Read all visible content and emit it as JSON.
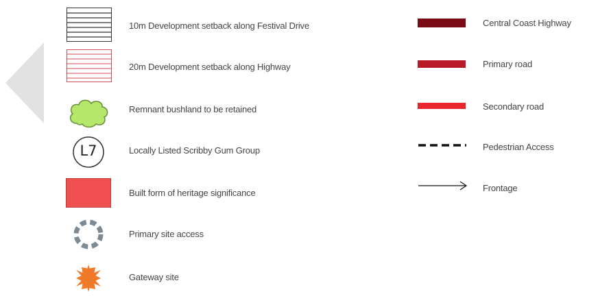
{
  "legend": {
    "left": [
      {
        "label": "10m Development setback along Festival Drive",
        "icon": "black-hatched-rectangle-icon"
      },
      {
        "label": "20m Development setback along Highway",
        "icon": "red-hatched-rectangle-icon"
      },
      {
        "label": "Remnant bushland to be retained",
        "icon": "green-cloud-icon",
        "color": "#b5e86a"
      },
      {
        "label": "Locally Listed Scribby Gum Group",
        "icon": "circle-badge-icon",
        "badge": "L7"
      },
      {
        "label": "Built form of heritage significance",
        "icon": "red-square-icon",
        "color": "#f05050"
      },
      {
        "label": "Primary site access",
        "icon": "dashed-circle-icon",
        "color": "#7d8a94"
      },
      {
        "label": "Gateway site",
        "icon": "orange-star-icon",
        "color": "#f07a2a"
      }
    ],
    "right": [
      {
        "label": "Central Coast Highway",
        "icon": "dark-red-line-icon",
        "color": "#7a0a14"
      },
      {
        "label": "Primary road",
        "icon": "red-line-icon",
        "color": "#b81a2a"
      },
      {
        "label": "Secondary road",
        "icon": "bright-red-line-icon",
        "color": "#e8262c"
      },
      {
        "label": "Pedestrian Access",
        "icon": "dashed-line-icon",
        "color": "#111111"
      },
      {
        "label": "Frontage",
        "icon": "arrow-line-icon",
        "color": "#111111"
      }
    ]
  }
}
